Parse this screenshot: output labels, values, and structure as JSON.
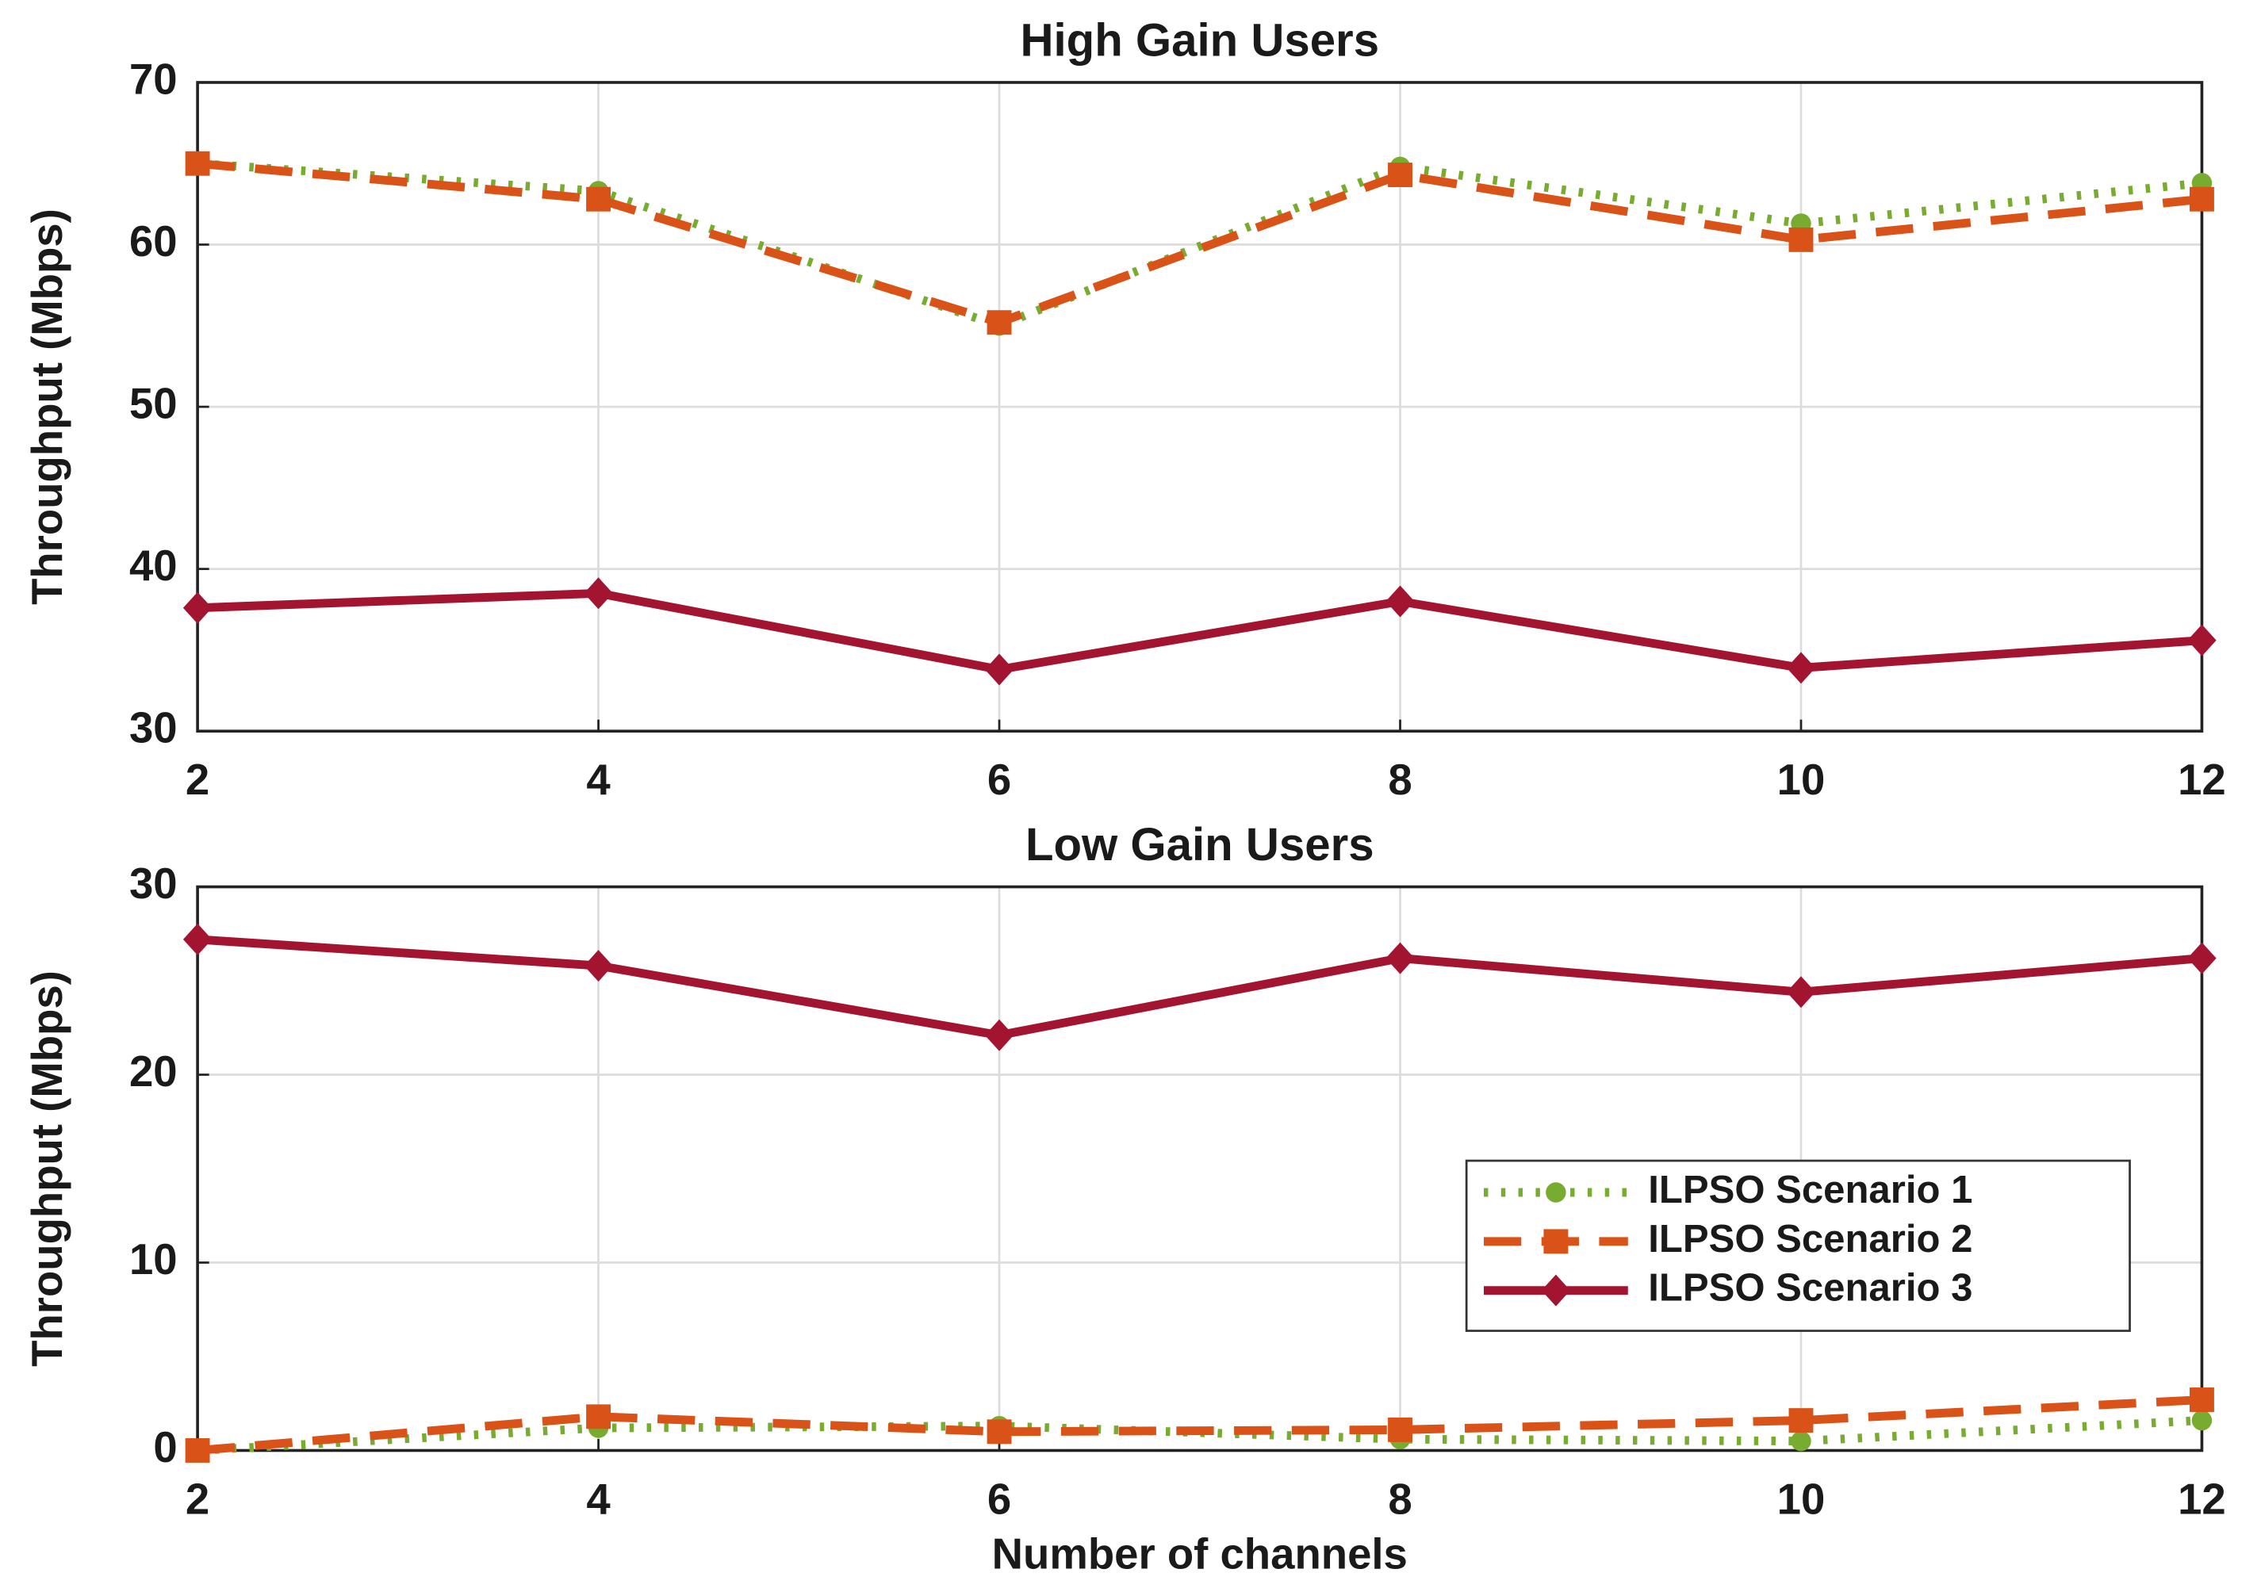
{
  "chart_data": [
    {
      "type": "line",
      "title": "High Gain Users",
      "y_label": "Throughput (Mbps)",
      "x": [
        2,
        4,
        6,
        8,
        10,
        12
      ],
      "xlim": [
        2,
        12
      ],
      "xticks": [
        2,
        4,
        6,
        8,
        10,
        12
      ],
      "ylim": [
        30,
        70
      ],
      "yticks": [
        30,
        40,
        50,
        60,
        70
      ],
      "grid": true,
      "series": [
        {
          "color": "#77ac30",
          "line_style": "dotted",
          "marker": "circle",
          "values": [
            65,
            63.3,
            55,
            64.8,
            61.3,
            63.8
          ]
        },
        {
          "color": "#d95319",
          "line_style": "dashed",
          "marker": "square",
          "values": [
            65,
            62.8,
            55.2,
            64.3,
            60.3,
            62.8
          ]
        },
        {
          "color": "#a2142f",
          "line_style": "solid",
          "marker": "diamond",
          "values": [
            37.6,
            38.5,
            33.8,
            38,
            33.9,
            35.6
          ]
        }
      ]
    },
    {
      "type": "line",
      "title": "Low Gain Users",
      "y_label": "Throughput (Mbps)",
      "x_label": "Number of channels",
      "x": [
        2,
        4,
        6,
        8,
        10,
        12
      ],
      "xlim": [
        2,
        12
      ],
      "xticks": [
        2,
        4,
        6,
        8,
        10,
        12
      ],
      "ylim": [
        0,
        30
      ],
      "yticks": [
        0,
        10,
        20,
        30
      ],
      "grid": true,
      "legend": "right",
      "series": [
        {
          "name": "ILPSO Scenario 1",
          "color": "#77ac30",
          "line_style": "dotted",
          "marker": "circle",
          "values": [
            0,
            1.2,
            1.3,
            0.6,
            0.5,
            1.6
          ]
        },
        {
          "name": "ILPSO Scenario 2",
          "color": "#d95319",
          "line_style": "dashed",
          "marker": "square",
          "values": [
            0,
            1.8,
            1.0,
            1.1,
            1.6,
            2.7
          ]
        },
        {
          "name": "ILPSO Scenario 3",
          "color": "#a2142f",
          "line_style": "solid",
          "marker": "diamond",
          "values": [
            27.2,
            25.8,
            22.1,
            26.2,
            24.4,
            26.2
          ]
        }
      ]
    }
  ]
}
